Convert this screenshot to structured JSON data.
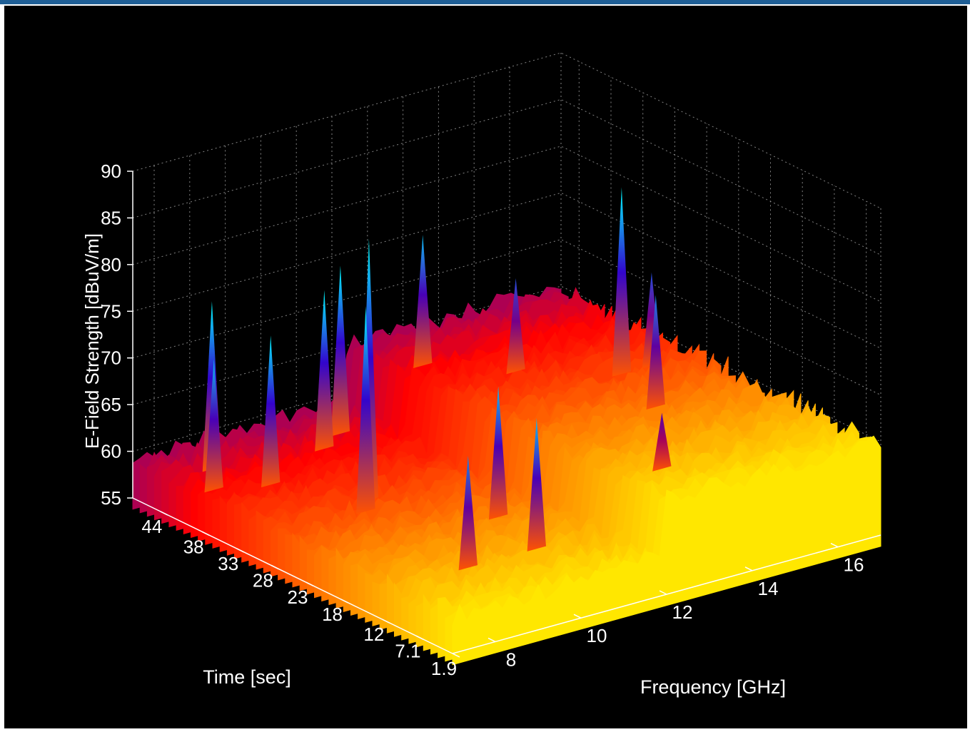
{
  "chart_data": {
    "type": "surface3d",
    "title": "",
    "zlabel": "E-Field Strength [dBuV/m]",
    "xlabel": "Frequency [GHz]",
    "ylabel": "Time [sec]",
    "z_ticks": [
      "55",
      "60",
      "65",
      "70",
      "75",
      "80",
      "85",
      "90"
    ],
    "z_range": [
      55,
      90
    ],
    "freq_ticks": [
      "8",
      "10",
      "12",
      "14",
      "16"
    ],
    "freq_range": [
      7,
      17
    ],
    "time_ticks": [
      "44",
      "38",
      "33",
      "28",
      "23",
      "18",
      "12",
      "7.1",
      "1.9"
    ],
    "time_range": [
      1.9,
      48
    ],
    "grid": true,
    "background": "#000000",
    "colormap": [
      "#ffff00",
      "#ff8800",
      "#ff0000",
      "#3300cc",
      "#00ffff"
    ],
    "baseline_levels": [
      {
        "freq_from": 7,
        "freq_to": 12,
        "level": 58
      },
      {
        "freq_from": 12,
        "freq_to": 17,
        "level": 64
      }
    ],
    "peaks": [
      {
        "freq": 9.6,
        "time": 30,
        "value": 86
      },
      {
        "freq": 9.2,
        "time": 28,
        "value": 80
      },
      {
        "freq": 15.5,
        "time": 30,
        "value": 84
      },
      {
        "freq": 15.0,
        "time": 22,
        "value": 76
      },
      {
        "freq": 12.8,
        "time": 42,
        "value": 78
      },
      {
        "freq": 11.2,
        "time": 44,
        "value": 76
      },
      {
        "freq": 10.5,
        "time": 42,
        "value": 75
      },
      {
        "freq": 16.2,
        "time": 30,
        "value": 74
      },
      {
        "freq": 14.0,
        "time": 36,
        "value": 74
      },
      {
        "freq": 8.2,
        "time": 44,
        "value": 76
      },
      {
        "freq": 8.6,
        "time": 38,
        "value": 74
      },
      {
        "freq": 10.6,
        "time": 12,
        "value": 72
      },
      {
        "freq": 9.0,
        "time": 12,
        "value": 70
      },
      {
        "freq": 11.0,
        "time": 20,
        "value": 72
      },
      {
        "freq": 7.6,
        "time": 40,
        "value": 72
      },
      {
        "freq": 13.2,
        "time": 10,
        "value": 70
      }
    ]
  }
}
